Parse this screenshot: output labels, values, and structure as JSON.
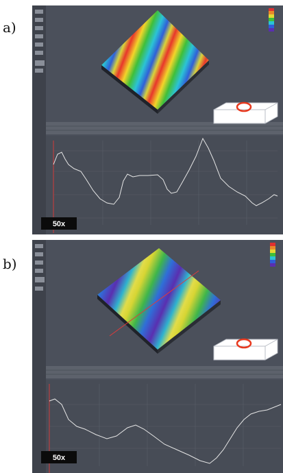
{
  "panels": [
    {
      "label": "a)",
      "magnification": "50x"
    },
    {
      "label": "b)",
      "magnification": "50x"
    }
  ]
}
